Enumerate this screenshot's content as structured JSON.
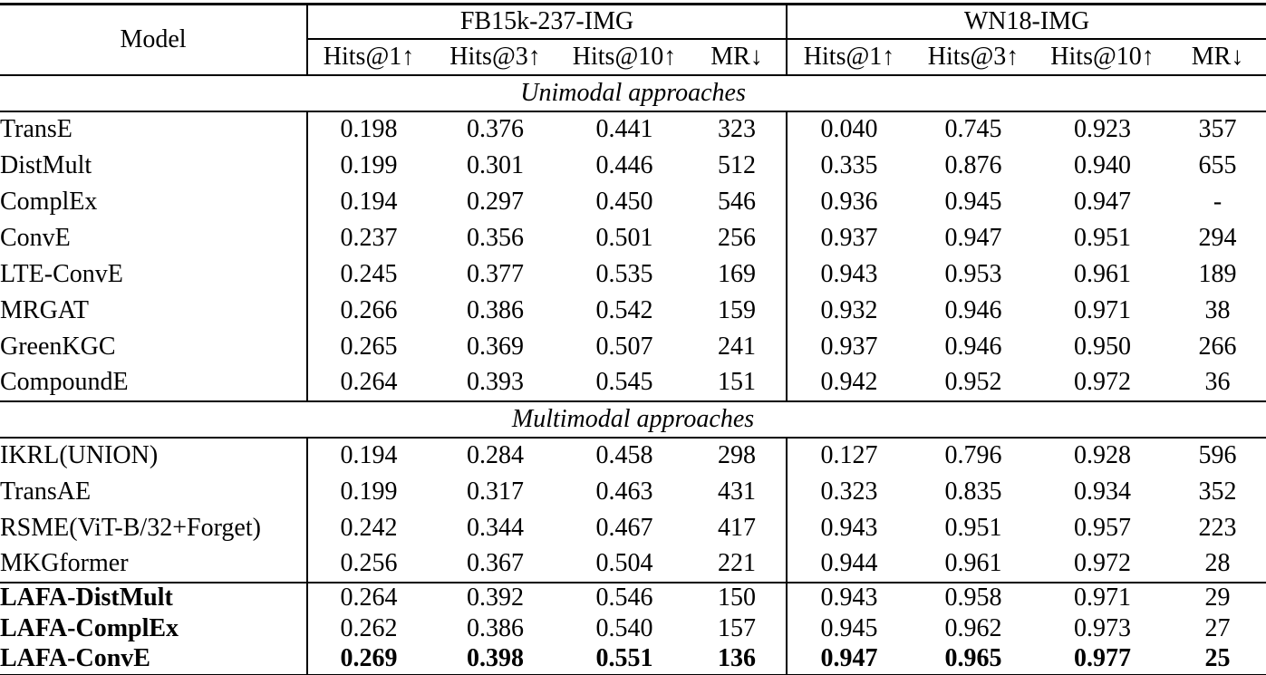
{
  "table": {
    "header": {
      "model_label": "Model",
      "groups": [
        {
          "label": "FB15k-237-IMG"
        },
        {
          "label": "WN18-IMG"
        }
      ],
      "metrics": [
        "Hits@1↑",
        "Hits@3↑",
        "Hits@10↑",
        "MR↓",
        "Hits@1↑",
        "Hits@3↑",
        "Hits@10↑",
        "MR↓"
      ]
    },
    "sections": [
      {
        "title": "Unimodal approaches",
        "rows": [
          {
            "model": "TransE",
            "bold_model": false,
            "bold_values": false,
            "separator_above": false,
            "values": [
              "0.198",
              "0.376",
              "0.441",
              "323",
              "0.040",
              "0.745",
              "0.923",
              "357"
            ]
          },
          {
            "model": "DistMult",
            "bold_model": false,
            "bold_values": false,
            "separator_above": false,
            "values": [
              "0.199",
              "0.301",
              "0.446",
              "512",
              "0.335",
              "0.876",
              "0.940",
              "655"
            ]
          },
          {
            "model": "ComplEx",
            "bold_model": false,
            "bold_values": false,
            "separator_above": false,
            "values": [
              "0.194",
              "0.297",
              "0.450",
              "546",
              "0.936",
              "0.945",
              "0.947",
              "-"
            ]
          },
          {
            "model": "ConvE",
            "bold_model": false,
            "bold_values": false,
            "separator_above": false,
            "values": [
              "0.237",
              "0.356",
              "0.501",
              "256",
              "0.937",
              "0.947",
              "0.951",
              "294"
            ]
          },
          {
            "model": "LTE-ConvE",
            "bold_model": false,
            "bold_values": false,
            "separator_above": false,
            "values": [
              "0.245",
              "0.377",
              "0.535",
              "169",
              "0.943",
              "0.953",
              "0.961",
              "189"
            ]
          },
          {
            "model": "MRGAT",
            "bold_model": false,
            "bold_values": false,
            "separator_above": false,
            "values": [
              "0.266",
              "0.386",
              "0.542",
              "159",
              "0.932",
              "0.946",
              "0.971",
              "38"
            ]
          },
          {
            "model": "GreenKGC",
            "bold_model": false,
            "bold_values": false,
            "separator_above": false,
            "values": [
              "0.265",
              "0.369",
              "0.507",
              "241",
              "0.937",
              "0.946",
              "0.950",
              "266"
            ]
          },
          {
            "model": "CompoundE",
            "bold_model": false,
            "bold_values": false,
            "separator_above": false,
            "values": [
              "0.264",
              "0.393",
              "0.545",
              "151",
              "0.942",
              "0.952",
              "0.972",
              "36"
            ]
          }
        ]
      },
      {
        "title": "Multimodal approaches",
        "rows": [
          {
            "model": "IKRL(UNION)",
            "bold_model": false,
            "bold_values": false,
            "separator_above": false,
            "values": [
              "0.194",
              "0.284",
              "0.458",
              "298",
              "0.127",
              "0.796",
              "0.928",
              "596"
            ]
          },
          {
            "model": "TransAE",
            "bold_model": false,
            "bold_values": false,
            "separator_above": false,
            "values": [
              "0.199",
              "0.317",
              "0.463",
              "431",
              "0.323",
              "0.835",
              "0.934",
              "352"
            ]
          },
          {
            "model": "RSME(ViT-B/32+Forget)",
            "bold_model": false,
            "bold_values": false,
            "separator_above": false,
            "values": [
              "0.242",
              "0.344",
              "0.467",
              "417",
              "0.943",
              "0.951",
              "0.957",
              "223"
            ]
          },
          {
            "model": "MKGformer",
            "bold_model": false,
            "bold_values": false,
            "separator_above": false,
            "values": [
              "0.256",
              "0.367",
              "0.504",
              "221",
              "0.944",
              "0.961",
              "0.972",
              "28"
            ]
          },
          {
            "model": "LAFA-DistMult",
            "bold_model": true,
            "bold_values": false,
            "separator_above": true,
            "values": [
              "0.264",
              "0.392",
              "0.546",
              "150",
              "0.943",
              "0.958",
              "0.971",
              "29"
            ]
          },
          {
            "model": "LAFA-ComplEx",
            "bold_model": true,
            "bold_values": false,
            "separator_above": false,
            "values": [
              "0.262",
              "0.386",
              "0.540",
              "157",
              "0.945",
              "0.962",
              "0.973",
              "27"
            ]
          },
          {
            "model": "LAFA-ConvE",
            "bold_model": true,
            "bold_values": true,
            "separator_above": false,
            "values": [
              "0.269",
              "0.398",
              "0.551",
              "136",
              "0.947",
              "0.965",
              "0.977",
              "25"
            ]
          }
        ]
      }
    ]
  }
}
